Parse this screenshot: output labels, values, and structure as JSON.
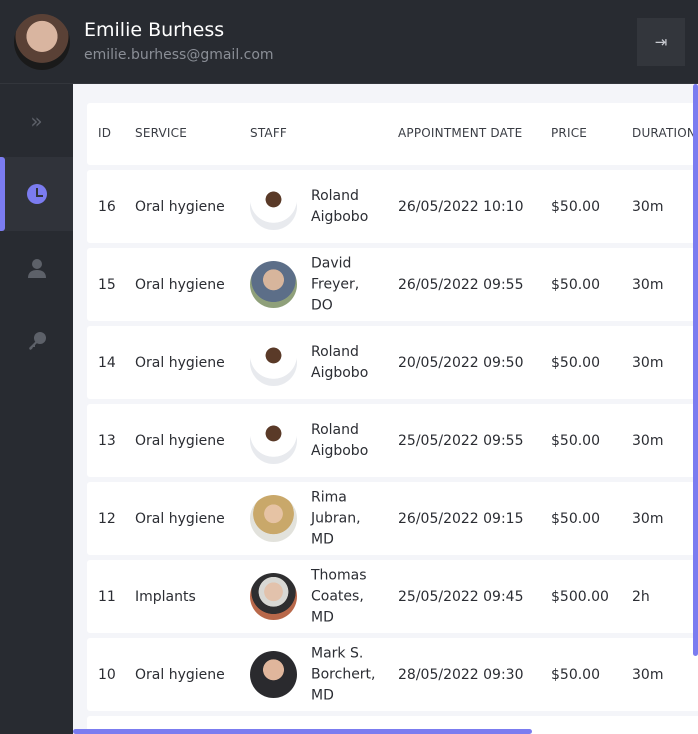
{
  "user": {
    "name": "Emilie Burhess",
    "email": "emilie.burhess@gmail.com"
  },
  "sidebar": {
    "items": [
      {
        "icon": "chevron-double-right-icon"
      },
      {
        "icon": "clock-icon",
        "active": true
      },
      {
        "icon": "user-icon"
      },
      {
        "icon": "key-icon"
      }
    ]
  },
  "accent": "#7b7cf0",
  "table": {
    "headers": [
      "ID",
      "SERVICE",
      "STAFF",
      "APPOINTMENT DATE",
      "PRICE",
      "DURATION"
    ],
    "rows": [
      {
        "id": "16",
        "service": "Oral hygiene",
        "staff": [
          "Roland",
          "Aigbobo"
        ],
        "date": "26/05/2022 10:10",
        "price": "$50.00",
        "duration": "30m"
      },
      {
        "id": "15",
        "service": "Oral hygiene",
        "staff": [
          "David",
          "Freyer,",
          "DO"
        ],
        "date": "26/05/2022 09:55",
        "price": "$50.00",
        "duration": "30m"
      },
      {
        "id": "14",
        "service": "Oral hygiene",
        "staff": [
          "Roland",
          "Aigbobo"
        ],
        "date": "20/05/2022 09:50",
        "price": "$50.00",
        "duration": "30m"
      },
      {
        "id": "13",
        "service": "Oral hygiene",
        "staff": [
          "Roland",
          "Aigbobo"
        ],
        "date": "25/05/2022 09:55",
        "price": "$50.00",
        "duration": "30m"
      },
      {
        "id": "12",
        "service": "Oral hygiene",
        "staff": [
          "Rima",
          "Jubran,",
          "MD"
        ],
        "date": "26/05/2022 09:15",
        "price": "$50.00",
        "duration": "30m"
      },
      {
        "id": "11",
        "service": "Implants",
        "staff": [
          "Thomas",
          "Coates,",
          "MD"
        ],
        "date": "25/05/2022 09:45",
        "price": "$500.00",
        "duration": "2h"
      },
      {
        "id": "10",
        "service": "Oral hygiene",
        "staff": [
          "Mark S.",
          "Borchert,",
          "MD"
        ],
        "date": "28/05/2022 09:30",
        "price": "$50.00",
        "duration": "30m"
      }
    ]
  }
}
